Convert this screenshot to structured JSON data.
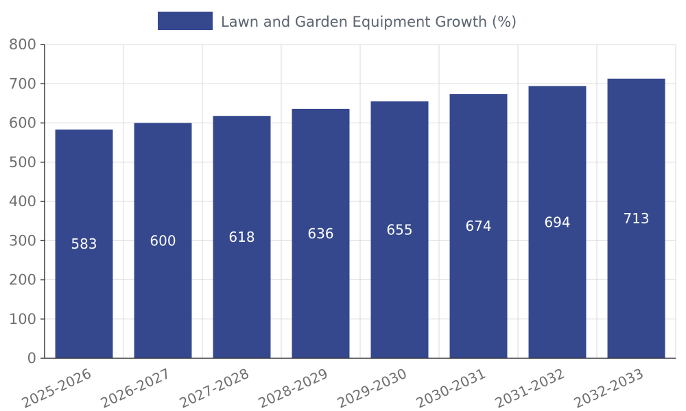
{
  "chart_data": {
    "type": "bar",
    "title": "Lawn and Garden Equipment Growth (%)",
    "categories": [
      "2025-2026",
      "2026-2027",
      "2027-2028",
      "2028-2029",
      "2029-2030",
      "2030-2031",
      "2031-2032",
      "2032-2033"
    ],
    "values": [
      583,
      600,
      618,
      636,
      655,
      674,
      694,
      713
    ],
    "xlabel": "",
    "ylabel": "",
    "ylim": [
      0,
      800
    ],
    "ytick_interval": 100,
    "yticks": [
      0,
      100,
      200,
      300,
      400,
      500,
      600,
      700,
      800
    ],
    "grid": true,
    "legend_position": "top-center",
    "colors": {
      "bar": "#35488e",
      "data_label": "#ffffff",
      "axis_text": "#6f6f6f",
      "title_text": "#5b6470",
      "grid_line": "#d9d9d9",
      "axis_line": "#3a3a3a",
      "background": "#ffffff"
    }
  }
}
